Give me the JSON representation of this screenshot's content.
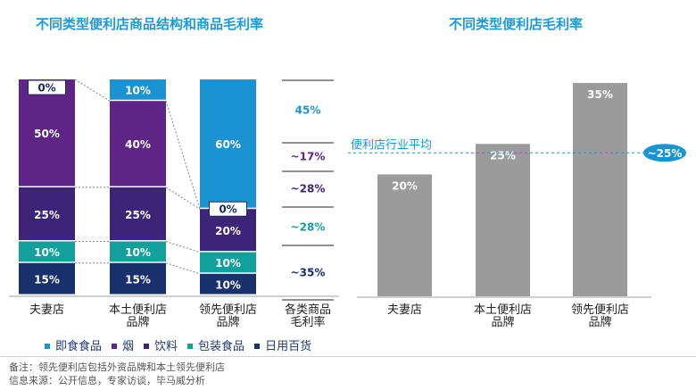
{
  "chart_data": [
    {
      "type": "bar",
      "stacked": true,
      "normalized_percent": true,
      "title": "不同类型便利店商品结构和商品毛利率",
      "categories": [
        "夫妻店",
        "本土便利店品牌",
        "领先便利店品牌"
      ],
      "category_lines": [
        [
          "夫妻店"
        ],
        [
          "本土便利店",
          "品牌"
        ],
        [
          "领先便利店",
          "品牌"
        ]
      ],
      "series": [
        {
          "name": "日用百货",
          "color": "#18306b",
          "values": [
            15,
            15,
            10
          ]
        },
        {
          "name": "包装食品",
          "color": "#11a19a",
          "values": [
            10,
            10,
            10
          ]
        },
        {
          "name": "饮料",
          "color": "#3d2479",
          "values": [
            25,
            25,
            20
          ]
        },
        {
          "name": "烟",
          "color": "#5e2486",
          "values": [
            50,
            40,
            0
          ]
        },
        {
          "name": "即食食品",
          "color": "#1b93d3",
          "values": [
            0,
            10,
            60
          ]
        }
      ],
      "value_labels": [
        [
          "15%",
          "10%",
          "25%",
          "50%",
          "0%"
        ],
        [
          "15%",
          "10%",
          "25%",
          "40%",
          "10%"
        ],
        [
          "10%",
          "10%",
          "20%",
          "0%",
          "60%"
        ]
      ],
      "margin_column": {
        "title_lines": [
          "各类商品",
          "毛利率"
        ],
        "rows": [
          {
            "series": "即食食品",
            "label": "45%",
            "color": "#1b93d3"
          },
          {
            "series": "烟",
            "label": "~17%",
            "color": "#5e2486"
          },
          {
            "series": "饮料",
            "label": "~28%",
            "color": "#3d2479"
          },
          {
            "series": "包装食品",
            "label": "~28%",
            "color": "#11a19a"
          },
          {
            "series": "日用百货",
            "label": "~35%",
            "color": "#18306b"
          }
        ]
      },
      "legend": [
        "即食食品",
        "烟",
        "饮料",
        "包装食品",
        "日用百货"
      ]
    },
    {
      "type": "bar",
      "title": "不同类型便利店毛利率",
      "categories": [
        "夫妻店",
        "本土便利店品牌",
        "领先便利店品牌"
      ],
      "category_lines": [
        [
          "夫妻店"
        ],
        [
          "本土便利店",
          "品牌"
        ],
        [
          "领先便利店",
          "品牌"
        ]
      ],
      "values": [
        20,
        25,
        35
      ],
      "value_labels": [
        "20%",
        "25%",
        "35%"
      ],
      "bar_color": "#9b9b9b",
      "ylim": [
        0,
        40
      ],
      "reference_line": {
        "value": 25,
        "label": "便利店行业平均",
        "badge": "~25%",
        "color": "#1b93d3"
      }
    }
  ],
  "footnotes": {
    "note": "备注：领先便利店包括外资品牌和本土领先便利店",
    "source": "信息来源：公开信息，专家访谈，毕马威分析"
  }
}
